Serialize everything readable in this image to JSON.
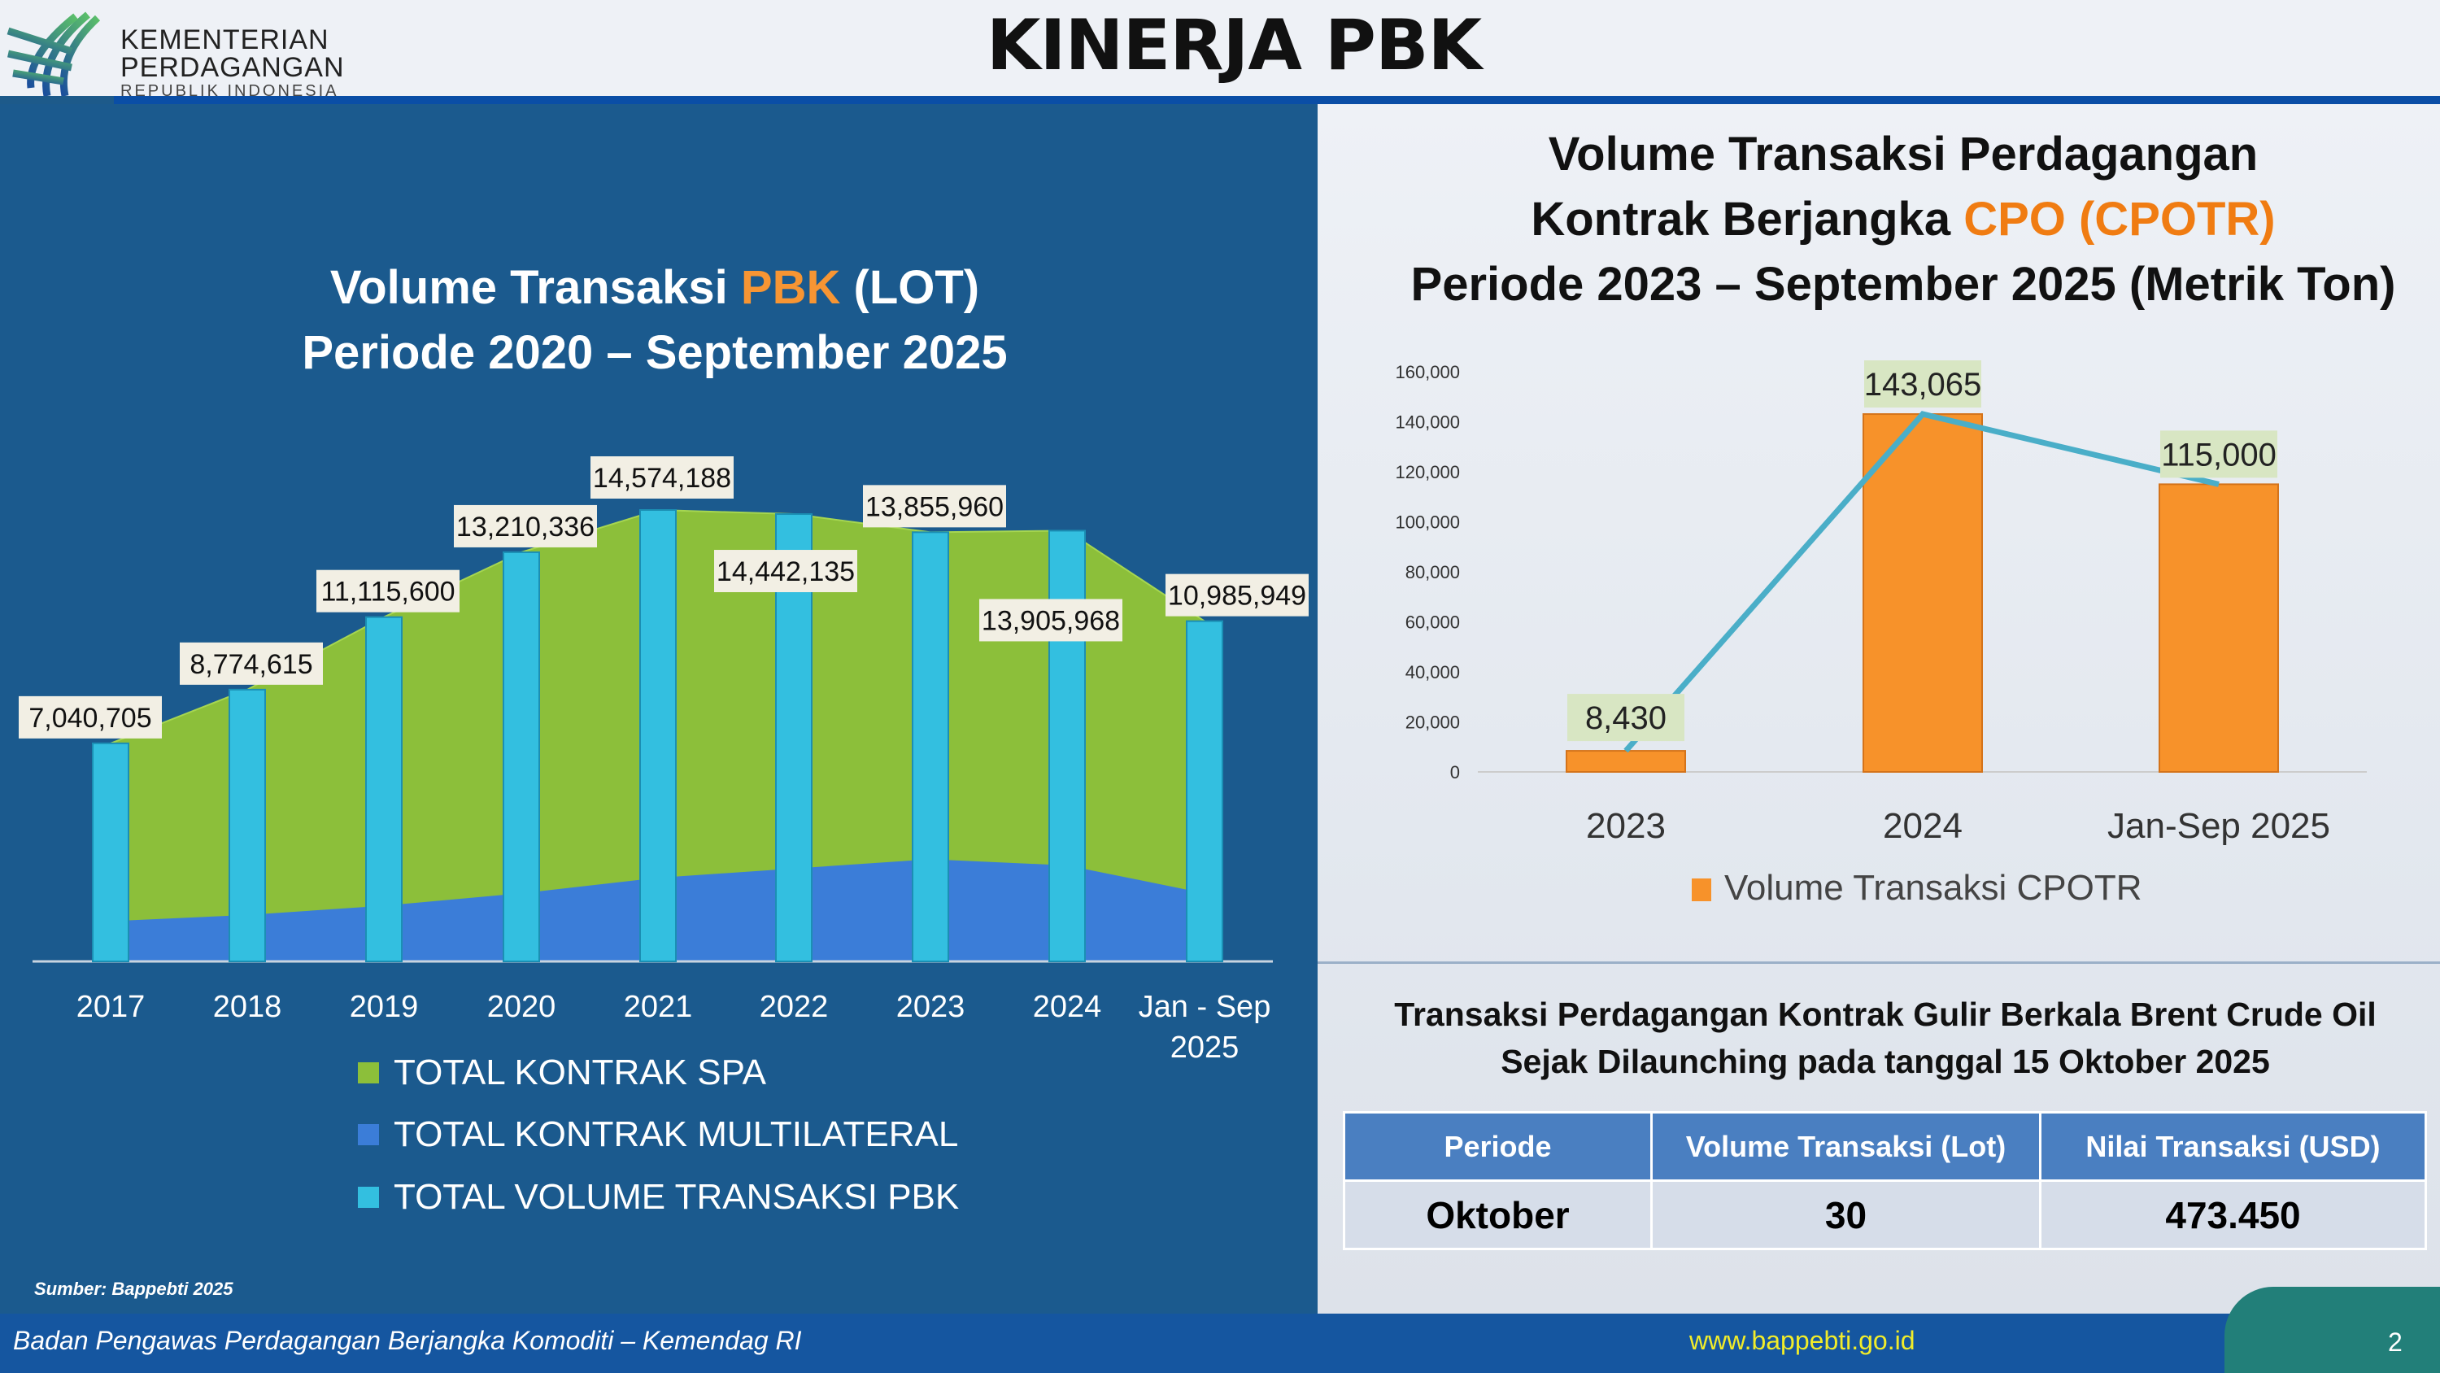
{
  "header": {
    "logo": {
      "line1": "KEMENTERIAN",
      "line2": "PERDAGANGAN",
      "line3": "REPUBLIK INDONESIA"
    },
    "title": "KINERJA PBK"
  },
  "left_panel": {
    "title_pre": "Volume Transaksi ",
    "title_accent": "PBK",
    "title_post": " (LOT)",
    "title_line2": "Periode 2020 – September 2025",
    "legend": [
      "TOTAL KONTRAK SPA",
      "TOTAL KONTRAK MULTILATERAL",
      "TOTAL VOLUME TRANSAKSI PBK"
    ],
    "source": "Sumber: Bappebti 2025"
  },
  "right_panel": {
    "title_line1": "Volume Transaksi Perdagangan",
    "title_line2_pre": "Kontrak Berjangka ",
    "title_line2_accent": "CPO (CPOTR)",
    "title_line3": "Periode 2023 – September 2025 (Metrik Ton)",
    "brent_line1": "Transaksi Perdagangan Kontrak Gulir Berkala Brent Crude Oil",
    "brent_line2": "Sejak Dilaunching pada tanggal 15 Oktober 2025",
    "table": {
      "headers": [
        "Periode",
        "Volume Transaksi (Lot)",
        "Nilai Transaksi (USD)"
      ],
      "rows": [
        [
          "Oktober",
          "30",
          "473.450"
        ]
      ]
    }
  },
  "footer": {
    "text": "Badan Pengawas Perdagangan Berjangka Komoditi – Kemendag RI",
    "url": "www.bappebti.go.id",
    "page": "2"
  },
  "colors": {
    "spa": "#8cbf3a",
    "multilateral": "#3b7dd8",
    "volume": "#33bfe0",
    "cpo": "#f7922a",
    "line": "#4aaec8"
  },
  "chart_data": [
    {
      "type": "bar",
      "title": "Volume Transaksi PBK (LOT)",
      "categories": [
        "2017",
        "2018",
        "2019",
        "2020",
        "2021",
        "2022",
        "2023",
        "2024",
        "Jan - Sep 2025"
      ],
      "series": [
        {
          "name": "TOTAL VOLUME TRANSAKSI PBK",
          "type": "bar",
          "values": [
            7040705,
            8774615,
            11115600,
            13210336,
            14574188,
            14442135,
            13855960,
            13905968,
            10985949
          ],
          "labels": [
            "7,040,705",
            "8,774,615",
            "11,115,600",
            "13,210,336",
            "14,574,188",
            "14,442,135",
            "13,855,960",
            "13,905,968",
            "10,985,949"
          ]
        },
        {
          "name": "TOTAL KONTRAK MULTILATERAL",
          "type": "area",
          "values": [
            1300000,
            1500000,
            1800000,
            2200000,
            2700000,
            3000000,
            3300000,
            3100000,
            2200000
          ]
        },
        {
          "name": "TOTAL KONTRAK SPA",
          "type": "area",
          "values": [
            5740705,
            7274615,
            9315600,
            11010336,
            11874188,
            11442135,
            10555960,
            10805968,
            8785949
          ]
        }
      ],
      "ylim": [
        0,
        16000000
      ],
      "legend": "bottom"
    },
    {
      "type": "bar",
      "title": "Volume Transaksi Perdagangan Kontrak Berjangka CPO (CPOTR)",
      "categories": [
        "2023",
        "2024",
        "Jan-Sep 2025"
      ],
      "series": [
        {
          "name": "Volume Transaksi CPOTR",
          "values": [
            8430,
            143065,
            115000
          ],
          "labels": [
            "8,430",
            "143,065",
            "115,000"
          ]
        }
      ],
      "yticks": [
        "0",
        "20,000",
        "40,000",
        "60,000",
        "80,000",
        "100,000",
        "120,000",
        "140,000",
        "160,000"
      ],
      "ylim": [
        0,
        160000
      ],
      "legend": "bottom"
    }
  ]
}
